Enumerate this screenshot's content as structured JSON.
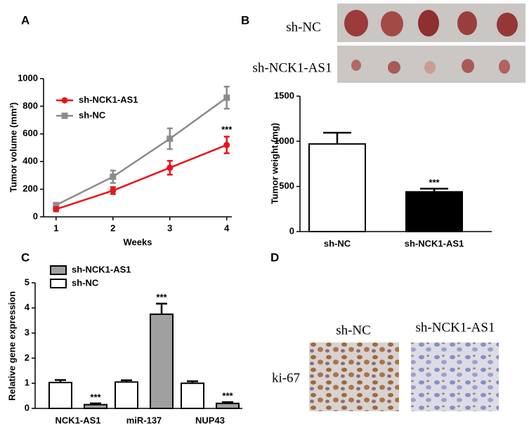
{
  "panel_labels": [
    "A",
    "B",
    "C",
    "D"
  ],
  "tumor_photos": {
    "rows": [
      "sh-NC",
      "sh-NCK1-AS1"
    ]
  },
  "ihc": {
    "columns": [
      "sh-NC",
      "sh-NCK1-AS1"
    ],
    "rows": [
      "ki-67"
    ]
  },
  "chart_data": [
    {
      "type": "line",
      "xlabel": "Weeks",
      "ylabel": "Tumor volume (mm³)",
      "x": [
        1,
        2,
        3,
        4
      ],
      "xlim": [
        0.78,
        4.09
      ],
      "xticks": [
        1,
        2,
        3,
        4
      ],
      "ylim": [
        0,
        1000
      ],
      "yticks": [
        0,
        200,
        400,
        600,
        800,
        1000
      ],
      "legend": "upper left",
      "series": [
        {
          "name": "sh-NCK1-AS1",
          "color": "#e8141b",
          "marker": "circle",
          "values": [
            55,
            190,
            355,
            520
          ],
          "errors": [
            15,
            25,
            50,
            60
          ],
          "annotations": [
            null,
            null,
            null,
            "***"
          ]
        },
        {
          "name": "sh-NC",
          "color": "#8c8c8c",
          "marker": "square",
          "values": [
            85,
            290,
            565,
            862
          ],
          "errors": [
            15,
            45,
            75,
            80
          ]
        }
      ]
    },
    {
      "type": "bar",
      "ylabel": "Tumor weight (mg)",
      "categories": [
        "sh-NC",
        "sh-NCK1-AS1"
      ],
      "values": [
        970,
        440
      ],
      "errors": [
        125,
        35
      ],
      "colors": [
        "#ffffff",
        "#000000"
      ],
      "annotations": [
        null,
        "***"
      ],
      "ylim": [
        0,
        1500
      ],
      "yticks": [
        0,
        500,
        1000,
        1500
      ]
    },
    {
      "type": "bar",
      "ylabel": "Relative gene expression",
      "categories": [
        "NCK1-AS1",
        "miR-137",
        "NUP43"
      ],
      "ylim": [
        0,
        5
      ],
      "yticks": [
        0,
        1,
        2,
        3,
        4,
        5
      ],
      "legend": "upper left",
      "series": [
        {
          "name": "sh-NCK1-AS1",
          "color": "#a0a0a0",
          "values": [
            0.15,
            3.75,
            0.2
          ],
          "errors": [
            0.05,
            0.42,
            0.05
          ],
          "annotations": [
            "***",
            "***",
            "***"
          ]
        },
        {
          "name": "sh-NC",
          "color": "#ffffff",
          "values": [
            1.03,
            1.05,
            1.0
          ],
          "errors": [
            0.1,
            0.07,
            0.08
          ]
        }
      ]
    }
  ]
}
